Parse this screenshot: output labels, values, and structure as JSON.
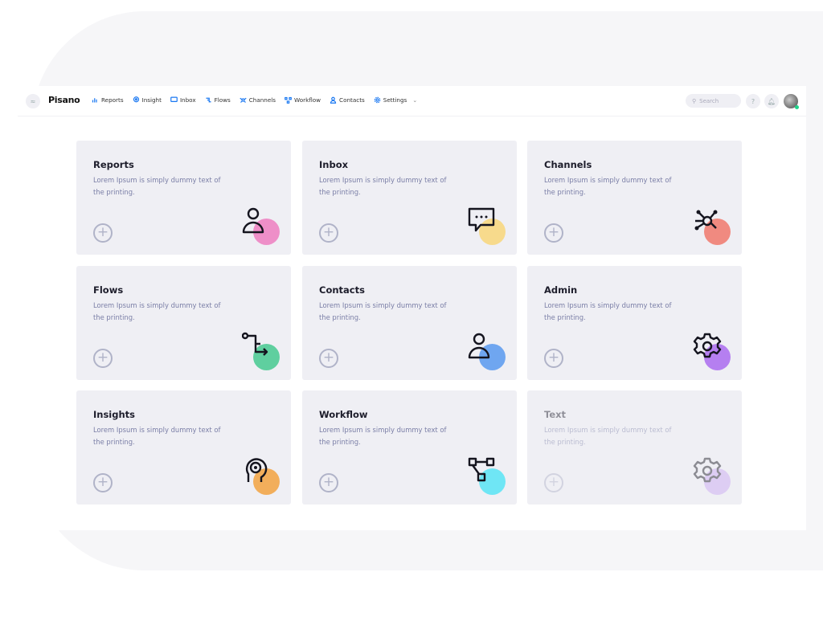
{
  "nav": {
    "logo": "Pisano",
    "items": [
      {
        "label": "Reports",
        "icon": "bar-chart-icon"
      },
      {
        "label": "Insight",
        "icon": "head-icon"
      },
      {
        "label": "Inbox",
        "icon": "chat-icon"
      },
      {
        "label": "Flows",
        "icon": "flow-icon"
      },
      {
        "label": "Channels",
        "icon": "network-icon"
      },
      {
        "label": "Workflow",
        "icon": "workflow-icon"
      },
      {
        "label": "Contacts",
        "icon": "user-icon"
      },
      {
        "label": "Settings",
        "icon": "gear-icon"
      }
    ],
    "search_placeholder": "Search"
  },
  "cards": [
    {
      "title": "Reports",
      "text": "Lorem Ipsum is simply dummy text of the printing.",
      "color": "#ee8fc8",
      "icon": "user"
    },
    {
      "title": "Inbox",
      "text": "Lorem Ipsum is simply dummy text of the printing.",
      "color": "#f7da8c",
      "icon": "chat"
    },
    {
      "title": "Channels",
      "text": "Lorem Ipsum is simply dummy text of the printing.",
      "color": "#f08a80",
      "icon": "network"
    },
    {
      "title": "Flows",
      "text": "Lorem Ipsum is simply dummy text of the printing.",
      "color": "#5fcf9f",
      "icon": "flow"
    },
    {
      "title": "Contacts",
      "text": "Lorem Ipsum is simply dummy text of the printing.",
      "color": "#6fa6f0",
      "icon": "user"
    },
    {
      "title": "Admin",
      "text": "Lorem Ipsum is simply dummy text of the printing.",
      "color": "#b57ff0",
      "icon": "gear"
    },
    {
      "title": "Insights",
      "text": "Lorem Ipsum is simply dummy text of the printing.",
      "color": "#f2ae5b",
      "icon": "head"
    },
    {
      "title": "Workflow",
      "text": "Lorem Ipsum is simply dummy text of the printing.",
      "color": "#6fe6f5",
      "icon": "workflow"
    },
    {
      "title": "Text",
      "text": "Lorem Ipsum is simply dummy text of the printing.",
      "color": "#c9a6f3",
      "icon": "gear",
      "disabled": true
    }
  ]
}
